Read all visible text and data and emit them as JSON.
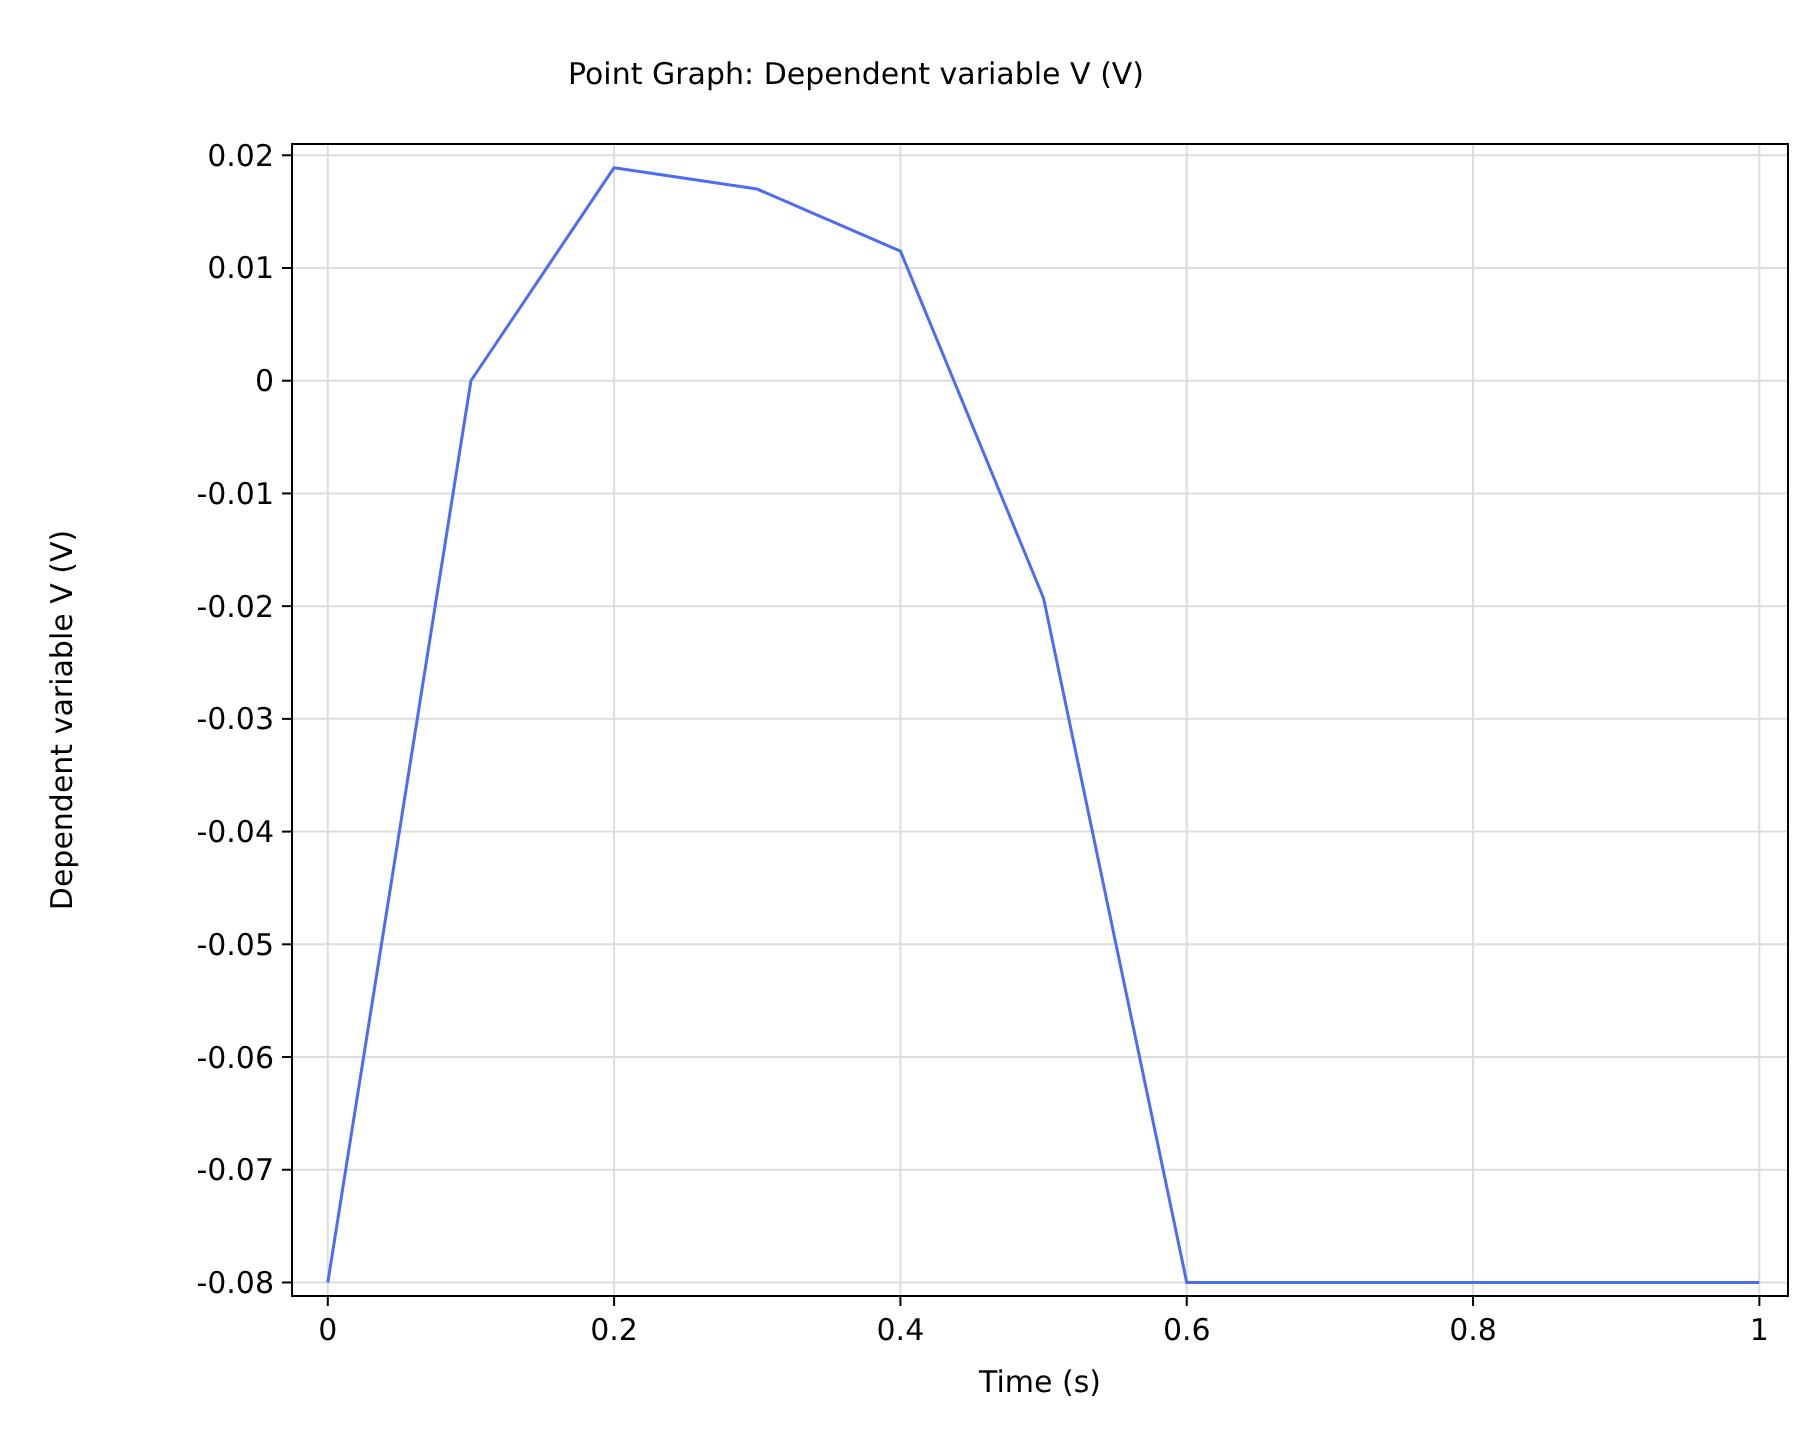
{
  "chart_data": {
    "type": "line",
    "title": "Point Graph: Dependent variable V (V)",
    "xlabel": "Time (s)",
    "ylabel": "Dependent variable V (V)",
    "x": [
      0,
      0.1,
      0.2,
      0.3,
      0.4,
      0.5,
      0.6,
      0.7,
      0.8,
      0.9,
      1
    ],
    "series": [
      {
        "color": "#4c6cf5",
        "values": [
          -0.08,
          0,
          0.0189,
          0.017,
          0.0115,
          -0.0193,
          -0.08,
          -0.08,
          -0.08,
          -0.08,
          -0.08
        ]
      }
    ],
    "xlim": [
      -0.025,
      1.02
    ],
    "xticks": [
      0,
      0.2,
      0.4,
      0.6,
      0.8,
      1
    ],
    "ylim": [
      -0.0812,
      0.021
    ],
    "yticks": [
      -0.08,
      -0.07,
      -0.06,
      -0.05,
      -0.04,
      -0.03,
      -0.02,
      -0.01,
      0,
      0.01,
      0.02
    ],
    "grid": true,
    "marker": "none",
    "line_style": "solid"
  }
}
